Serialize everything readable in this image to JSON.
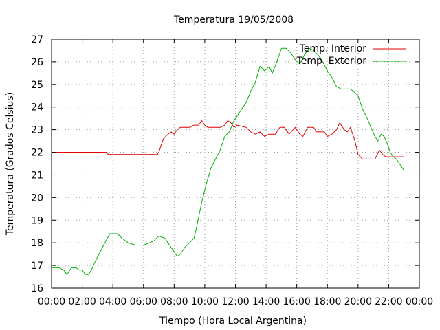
{
  "chart_data": {
    "type": "line",
    "title": "Temperatura 19/05/2008",
    "xlabel": "Tiempo (Hora Local Argentina)",
    "ylabel": "Temperatura (Grados Celsius)",
    "xlim": [
      0,
      24
    ],
    "ylim": [
      16,
      27
    ],
    "x_ticks": [
      {
        "value": 0,
        "label": "00:00"
      },
      {
        "value": 2,
        "label": "02:00"
      },
      {
        "value": 4,
        "label": "04:00"
      },
      {
        "value": 6,
        "label": "06:00"
      },
      {
        "value": 8,
        "label": "08:00"
      },
      {
        "value": 10,
        "label": "10:00"
      },
      {
        "value": 12,
        "label": "12:00"
      },
      {
        "value": 14,
        "label": "14:00"
      },
      {
        "value": 16,
        "label": "16:00"
      },
      {
        "value": 18,
        "label": "18:00"
      },
      {
        "value": 20,
        "label": "20:00"
      },
      {
        "value": 22,
        "label": "22:00"
      },
      {
        "value": 24,
        "label": "00:00"
      }
    ],
    "y_ticks": [
      {
        "value": 16,
        "label": "16"
      },
      {
        "value": 17,
        "label": "17"
      },
      {
        "value": 18,
        "label": "18"
      },
      {
        "value": 19,
        "label": "19"
      },
      {
        "value": 20,
        "label": "20"
      },
      {
        "value": 21,
        "label": "21"
      },
      {
        "value": 22,
        "label": "22"
      },
      {
        "value": 23,
        "label": "23"
      },
      {
        "value": 24,
        "label": "24"
      },
      {
        "value": 25,
        "label": "25"
      },
      {
        "value": 26,
        "label": "26"
      },
      {
        "value": 27,
        "label": "27"
      }
    ],
    "grid": true,
    "legend_position": "top-right",
    "series": [
      {
        "name": "Temp. Interior",
        "color": "#e00000",
        "points": [
          [
            0,
            22.0
          ],
          [
            3.6,
            22.0
          ],
          [
            3.7,
            21.9
          ],
          [
            6.9,
            21.9
          ],
          [
            7.0,
            22.0
          ],
          [
            7.3,
            22.6
          ],
          [
            7.6,
            22.8
          ],
          [
            7.8,
            22.9
          ],
          [
            8.0,
            22.8
          ],
          [
            8.2,
            23.0
          ],
          [
            8.4,
            23.1
          ],
          [
            9.0,
            23.1
          ],
          [
            9.3,
            23.2
          ],
          [
            9.6,
            23.2
          ],
          [
            9.8,
            23.4
          ],
          [
            10.0,
            23.2
          ],
          [
            10.2,
            23.1
          ],
          [
            11.0,
            23.1
          ],
          [
            11.3,
            23.2
          ],
          [
            11.5,
            23.4
          ],
          [
            11.7,
            23.3
          ],
          [
            11.9,
            23.1
          ],
          [
            12.1,
            23.2
          ],
          [
            12.7,
            23.1
          ],
          [
            13.0,
            22.9
          ],
          [
            13.3,
            22.8
          ],
          [
            13.6,
            22.9
          ],
          [
            13.9,
            22.7
          ],
          [
            14.2,
            22.8
          ],
          [
            14.6,
            22.8
          ],
          [
            14.9,
            23.1
          ],
          [
            15.2,
            23.1
          ],
          [
            15.5,
            22.8
          ],
          [
            15.9,
            23.1
          ],
          [
            16.2,
            22.8
          ],
          [
            16.4,
            22.7
          ],
          [
            16.7,
            23.1
          ],
          [
            17.1,
            23.1
          ],
          [
            17.3,
            22.9
          ],
          [
            17.8,
            22.9
          ],
          [
            18.0,
            22.7
          ],
          [
            18.3,
            22.8
          ],
          [
            18.6,
            23.0
          ],
          [
            18.8,
            23.3
          ],
          [
            19.1,
            23.0
          ],
          [
            19.3,
            22.9
          ],
          [
            19.5,
            23.1
          ],
          [
            19.8,
            22.5
          ],
          [
            20.0,
            21.9
          ],
          [
            20.3,
            21.7
          ],
          [
            21.1,
            21.7
          ],
          [
            21.4,
            22.1
          ],
          [
            21.6,
            21.9
          ],
          [
            21.8,
            21.8
          ],
          [
            22.5,
            21.8
          ],
          [
            23.0,
            21.8
          ]
        ]
      },
      {
        "name": "Temp. Exterior",
        "color": "#00b000",
        "points": [
          [
            0,
            16.9
          ],
          [
            0.5,
            16.9
          ],
          [
            0.8,
            16.8
          ],
          [
            1.0,
            16.6
          ],
          [
            1.3,
            16.9
          ],
          [
            1.6,
            16.9
          ],
          [
            1.8,
            16.8
          ],
          [
            2.0,
            16.8
          ],
          [
            2.2,
            16.6
          ],
          [
            2.4,
            16.6
          ],
          [
            2.6,
            16.8
          ],
          [
            2.8,
            17.1
          ],
          [
            3.1,
            17.5
          ],
          [
            3.4,
            17.9
          ],
          [
            3.8,
            18.4
          ],
          [
            4.3,
            18.4
          ],
          [
            4.6,
            18.2
          ],
          [
            5.0,
            18.0
          ],
          [
            5.5,
            17.9
          ],
          [
            6.0,
            17.9
          ],
          [
            6.4,
            18.0
          ],
          [
            6.7,
            18.1
          ],
          [
            7.0,
            18.3
          ],
          [
            7.4,
            18.2
          ],
          [
            7.7,
            17.9
          ],
          [
            8.0,
            17.6
          ],
          [
            8.2,
            17.4
          ],
          [
            8.4,
            17.5
          ],
          [
            8.7,
            17.8
          ],
          [
            9.0,
            18.0
          ],
          [
            9.3,
            18.2
          ],
          [
            9.5,
            18.8
          ],
          [
            9.8,
            19.8
          ],
          [
            10.1,
            20.6
          ],
          [
            10.4,
            21.3
          ],
          [
            10.7,
            21.7
          ],
          [
            11.0,
            22.1
          ],
          [
            11.3,
            22.7
          ],
          [
            11.6,
            22.9
          ],
          [
            11.9,
            23.4
          ],
          [
            12.3,
            23.8
          ],
          [
            12.7,
            24.2
          ],
          [
            13.0,
            24.7
          ],
          [
            13.3,
            25.1
          ],
          [
            13.6,
            25.8
          ],
          [
            13.9,
            25.6
          ],
          [
            14.2,
            25.8
          ],
          [
            14.4,
            25.5
          ],
          [
            14.7,
            26.0
          ],
          [
            15.0,
            26.6
          ],
          [
            15.3,
            26.6
          ],
          [
            15.6,
            26.4
          ],
          [
            15.9,
            26.1
          ],
          [
            16.2,
            25.9
          ],
          [
            16.5,
            26.3
          ],
          [
            16.8,
            26.6
          ],
          [
            17.1,
            26.5
          ],
          [
            17.4,
            26.3
          ],
          [
            17.7,
            26.0
          ],
          [
            18.0,
            25.6
          ],
          [
            18.3,
            25.3
          ],
          [
            18.6,
            24.9
          ],
          [
            18.9,
            24.8
          ],
          [
            19.5,
            24.8
          ],
          [
            19.7,
            24.7
          ],
          [
            20.0,
            24.5
          ],
          [
            20.3,
            23.9
          ],
          [
            20.6,
            23.5
          ],
          [
            20.9,
            23.0
          ],
          [
            21.1,
            22.7
          ],
          [
            21.3,
            22.5
          ],
          [
            21.5,
            22.8
          ],
          [
            21.7,
            22.7
          ],
          [
            21.9,
            22.4
          ],
          [
            22.1,
            22.0
          ],
          [
            22.3,
            21.8
          ],
          [
            22.5,
            21.7
          ],
          [
            22.7,
            21.5
          ],
          [
            23.0,
            21.2
          ]
        ]
      }
    ]
  }
}
